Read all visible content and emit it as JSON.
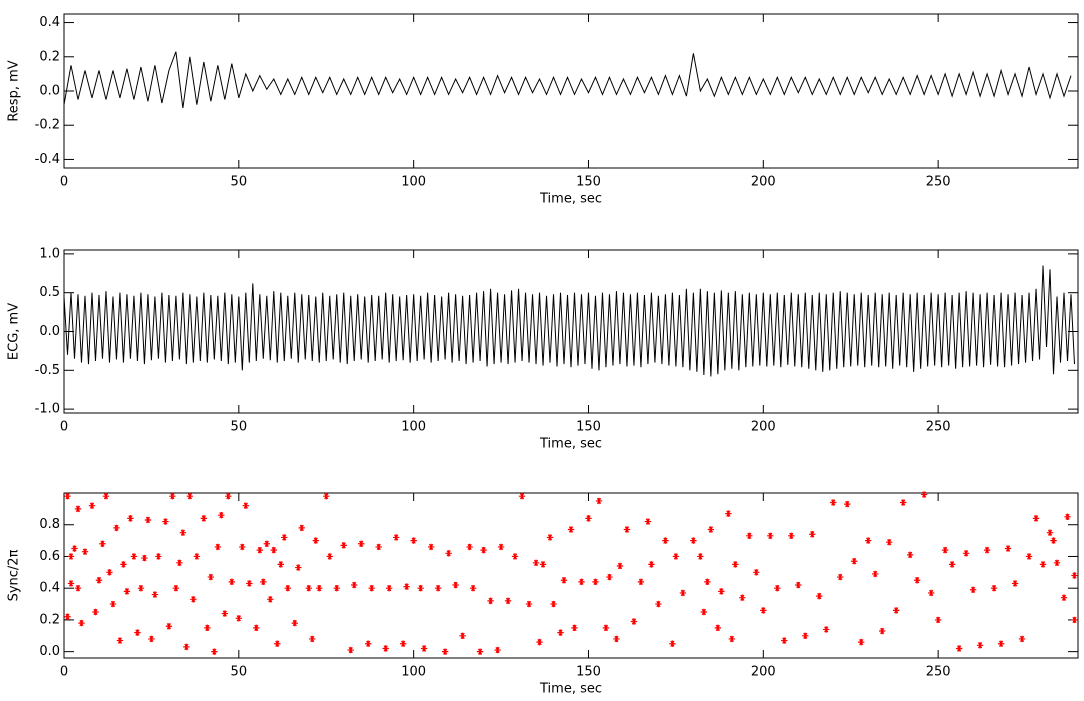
{
  "chart_data": [
    {
      "type": "line",
      "ylabel": "Resp, mV",
      "xlabel": "Time, sec",
      "color": "#000000",
      "xlim": [
        0,
        290
      ],
      "xticks": [
        0,
        50,
        100,
        150,
        200,
        250
      ],
      "ylim": [
        -0.45,
        0.45
      ],
      "yticks": [
        -0.4,
        -0.2,
        {
          "value": 0,
          "label": "0.0"
        },
        0.2,
        0.4
      ],
      "x": [
        0,
        2,
        4,
        6,
        8,
        10,
        12,
        14,
        16,
        18,
        20,
        22,
        24,
        26,
        28,
        30,
        32,
        34,
        36,
        38,
        40,
        42,
        44,
        46,
        48,
        50,
        52,
        54,
        56,
        58,
        60,
        62,
        64,
        66,
        68,
        70,
        72,
        74,
        76,
        78,
        80,
        82,
        84,
        86,
        88,
        90,
        92,
        94,
        96,
        98,
        100,
        102,
        104,
        106,
        108,
        110,
        112,
        114,
        116,
        118,
        120,
        122,
        124,
        126,
        128,
        130,
        132,
        134,
        136,
        138,
        140,
        142,
        144,
        146,
        148,
        150,
        152,
        154,
        156,
        158,
        160,
        162,
        164,
        166,
        168,
        170,
        172,
        174,
        176,
        178,
        180,
        182,
        184,
        186,
        188,
        190,
        192,
        194,
        196,
        198,
        200,
        202,
        204,
        206,
        208,
        210,
        212,
        214,
        216,
        218,
        220,
        222,
        224,
        226,
        228,
        230,
        232,
        234,
        236,
        238,
        240,
        242,
        244,
        246,
        248,
        250,
        252,
        254,
        256,
        258,
        260,
        262,
        264,
        266,
        268,
        270,
        272,
        274,
        276,
        278,
        280,
        282,
        284,
        286,
        288
      ],
      "values": [
        -0.08,
        0.15,
        -0.05,
        0.12,
        -0.04,
        0.12,
        -0.05,
        0.12,
        -0.04,
        0.13,
        -0.05,
        0.14,
        -0.06,
        0.15,
        -0.07,
        0.12,
        0.23,
        -0.1,
        0.2,
        -0.08,
        0.17,
        -0.06,
        0.15,
        -0.05,
        0.16,
        -0.04,
        0.1,
        0.0,
        0.09,
        0.01,
        0.07,
        -0.02,
        0.07,
        -0.02,
        0.08,
        -0.02,
        0.08,
        -0.01,
        0.08,
        -0.02,
        0.07,
        -0.02,
        0.08,
        -0.02,
        0.08,
        -0.02,
        0.08,
        -0.01,
        0.07,
        -0.02,
        0.08,
        -0.02,
        0.08,
        -0.02,
        0.08,
        -0.02,
        0.07,
        -0.01,
        0.08,
        -0.02,
        0.08,
        -0.02,
        0.09,
        -0.01,
        0.08,
        -0.02,
        0.08,
        -0.01,
        0.07,
        -0.02,
        0.08,
        -0.02,
        0.08,
        -0.02,
        0.07,
        -0.01,
        0.08,
        -0.02,
        0.08,
        -0.02,
        0.07,
        -0.02,
        0.08,
        -0.01,
        0.08,
        -0.02,
        0.09,
        -0.02,
        0.09,
        -0.03,
        0.22,
        0.0,
        0.07,
        -0.03,
        0.08,
        -0.02,
        0.08,
        -0.02,
        0.08,
        -0.02,
        0.07,
        -0.02,
        0.08,
        -0.02,
        0.08,
        -0.01,
        0.08,
        -0.02,
        0.07,
        -0.02,
        0.08,
        -0.02,
        0.08,
        -0.02,
        0.08,
        -0.01,
        0.08,
        -0.02,
        0.07,
        -0.02,
        0.08,
        -0.02,
        0.09,
        -0.02,
        0.09,
        -0.02,
        0.1,
        -0.03,
        0.1,
        -0.02,
        0.11,
        -0.03,
        0.1,
        -0.03,
        0.12,
        -0.02,
        0.1,
        -0.03,
        0.14,
        -0.02,
        0.1,
        -0.04,
        0.1,
        -0.03,
        0.09
      ]
    },
    {
      "type": "line",
      "ylabel": "ECG, mV",
      "xlabel": "Time, sec",
      "color": "#000000",
      "xlim": [
        0,
        290
      ],
      "xticks": [
        0,
        50,
        100,
        150,
        200,
        250
      ],
      "ylim": [
        -1.05,
        1.05
      ],
      "yticks": [
        {
          "value": -1,
          "label": "-1.0"
        },
        -0.5,
        {
          "value": 0,
          "label": "0.0"
        },
        0.5,
        {
          "value": 1,
          "label": "1.0"
        }
      ],
      "x": [
        0,
        1,
        2,
        3,
        4,
        5,
        6,
        7,
        8,
        9,
        10,
        11,
        12,
        13,
        14,
        15,
        16,
        17,
        18,
        19,
        20,
        21,
        22,
        23,
        24,
        25,
        26,
        27,
        28,
        29,
        30,
        31,
        32,
        33,
        34,
        35,
        36,
        37,
        38,
        39,
        40,
        41,
        42,
        43,
        44,
        45,
        46,
        47,
        48,
        49,
        50,
        51,
        52,
        53,
        54,
        55,
        56,
        57,
        58,
        59,
        60,
        61,
        62,
        63,
        64,
        65,
        66,
        67,
        68,
        69,
        70,
        71,
        72,
        73,
        74,
        75,
        76,
        77,
        78,
        79,
        80,
        81,
        82,
        83,
        84,
        85,
        86,
        87,
        88,
        89,
        90,
        91,
        92,
        93,
        94,
        95,
        96,
        97,
        98,
        99,
        100,
        101,
        102,
        103,
        104,
        105,
        106,
        107,
        108,
        109,
        110,
        111,
        112,
        113,
        114,
        115,
        116,
        117,
        118,
        119,
        120,
        121,
        122,
        123,
        124,
        125,
        126,
        127,
        128,
        129,
        130,
        131,
        132,
        133,
        134,
        135,
        136,
        137,
        138,
        139,
        140,
        141,
        142,
        143,
        144,
        145,
        146,
        147,
        148,
        149,
        150,
        151,
        152,
        153,
        154,
        155,
        156,
        157,
        158,
        159,
        160,
        161,
        162,
        163,
        164,
        165,
        166,
        167,
        168,
        169,
        170,
        171,
        172,
        173,
        174,
        175,
        176,
        177,
        178,
        179,
        180,
        181,
        182,
        183,
        184,
        185,
        186,
        187,
        188,
        189,
        190,
        191,
        192,
        193,
        194,
        195,
        196,
        197,
        198,
        199,
        200,
        201,
        202,
        203,
        204,
        205,
        206,
        207,
        208,
        209,
        210,
        211,
        212,
        213,
        214,
        215,
        216,
        217,
        218,
        219,
        220,
        221,
        222,
        223,
        224,
        225,
        226,
        227,
        228,
        229,
        230,
        231,
        232,
        233,
        234,
        235,
        236,
        237,
        238,
        239,
        240,
        241,
        242,
        243,
        244,
        245,
        246,
        247,
        248,
        249,
        250,
        251,
        252,
        253,
        254,
        255,
        256,
        257,
        258,
        259,
        260,
        261,
        262,
        263,
        264,
        265,
        266,
        267,
        268,
        269,
        270,
        271,
        272,
        273,
        274,
        275,
        276,
        277,
        278,
        279,
        280,
        281,
        282,
        283,
        284,
        285,
        286,
        287,
        288,
        289
      ],
      "values": [
        0.45,
        -0.3,
        0.5,
        -0.35,
        0.48,
        -0.4,
        0.46,
        -0.42,
        0.5,
        -0.38,
        0.47,
        -0.35,
        0.52,
        -0.4,
        0.45,
        -0.36,
        0.5,
        -0.4,
        0.48,
        -0.35,
        0.46,
        -0.38,
        0.5,
        -0.42,
        0.48,
        -0.37,
        0.45,
        -0.35,
        0.5,
        -0.4,
        0.47,
        -0.38,
        0.46,
        -0.36,
        0.5,
        -0.42,
        0.48,
        -0.4,
        0.45,
        -0.38,
        0.5,
        -0.4,
        0.47,
        -0.36,
        0.46,
        -0.38,
        0.5,
        -0.42,
        0.48,
        -0.4,
        0.45,
        -0.5,
        0.5,
        -0.4,
        0.62,
        -0.38,
        0.48,
        -0.35,
        0.46,
        -0.37,
        0.52,
        -0.4,
        0.5,
        -0.38,
        0.46,
        -0.35,
        0.5,
        -0.4,
        0.48,
        -0.36,
        0.47,
        -0.38,
        0.45,
        -0.4,
        0.5,
        -0.38,
        0.46,
        -0.36,
        0.48,
        -0.4,
        0.5,
        -0.42,
        0.46,
        -0.38,
        0.48,
        -0.36,
        0.45,
        -0.4,
        0.47,
        -0.38,
        0.46,
        -0.36,
        0.5,
        -0.4,
        0.48,
        -0.38,
        0.45,
        -0.37,
        0.47,
        -0.4,
        0.48,
        -0.38,
        0.46,
        -0.36,
        0.5,
        -0.4,
        0.47,
        -0.38,
        0.45,
        -0.36,
        0.5,
        -0.4,
        0.48,
        -0.38,
        0.46,
        -0.42,
        0.47,
        -0.4,
        0.5,
        -0.38,
        0.52,
        -0.45,
        0.55,
        -0.42,
        0.5,
        -0.4,
        0.48,
        -0.42,
        0.53,
        -0.4,
        0.55,
        -0.38,
        0.5,
        -0.4,
        0.48,
        -0.42,
        0.5,
        -0.44,
        0.46,
        -0.4,
        0.48,
        -0.45,
        0.5,
        -0.42,
        0.47,
        -0.46,
        0.5,
        -0.44,
        0.48,
        -0.42,
        0.5,
        -0.48,
        0.46,
        -0.5,
        0.5,
        -0.46,
        0.48,
        -0.44,
        0.52,
        -0.42,
        0.5,
        -0.45,
        0.48,
        -0.44,
        0.5,
        -0.46,
        0.47,
        -0.42,
        0.5,
        -0.4,
        0.46,
        -0.42,
        0.48,
        -0.44,
        0.5,
        -0.45,
        0.47,
        -0.46,
        0.55,
        -0.5,
        0.5,
        -0.52,
        0.55,
        -0.56,
        0.52,
        -0.58,
        0.5,
        -0.55,
        0.53,
        -0.5,
        0.5,
        -0.48,
        0.52,
        -0.5,
        0.48,
        -0.46,
        0.5,
        -0.45,
        0.48,
        -0.44,
        0.5,
        -0.45,
        0.48,
        -0.44,
        0.5,
        -0.46,
        0.47,
        -0.43,
        0.5,
        -0.45,
        0.48,
        -0.46,
        0.5,
        -0.48,
        0.47,
        -0.5,
        0.5,
        -0.52,
        0.48,
        -0.5,
        0.5,
        -0.48,
        0.52,
        -0.46,
        0.5,
        -0.45,
        0.48,
        -0.44,
        0.5,
        -0.46,
        0.47,
        -0.44,
        0.5,
        -0.46,
        0.48,
        -0.45,
        0.5,
        -0.48,
        0.47,
        -0.44,
        0.5,
        -0.46,
        0.48,
        -0.52,
        0.5,
        -0.48,
        0.47,
        -0.45,
        0.5,
        -0.44,
        0.48,
        -0.46,
        0.5,
        -0.44,
        0.47,
        -0.48,
        0.5,
        -0.46,
        0.52,
        -0.45,
        0.5,
        -0.44,
        0.48,
        -0.46,
        0.5,
        -0.43,
        0.47,
        -0.45,
        0.5,
        -0.46,
        0.48,
        -0.44,
        0.5,
        -0.42,
        0.47,
        -0.4,
        0.5,
        -0.38,
        0.55,
        -0.36,
        0.85,
        -0.2,
        0.8,
        -0.55,
        0.45,
        -0.4,
        0.5,
        -0.38,
        0.48,
        -0.42
      ]
    },
    {
      "type": "scatter",
      "ylabel": "Sync/2π",
      "xlabel": "Time, sec",
      "color": "#ff0000",
      "xlim": [
        0,
        290
      ],
      "xticks": [
        0,
        50,
        100,
        150,
        200,
        250
      ],
      "ylim": [
        -0.04,
        1.0
      ],
      "yticks": [
        {
          "value": 0,
          "label": "0.0"
        },
        0.2,
        0.4,
        0.6,
        0.8
      ],
      "x": [
        1,
        1,
        2,
        2,
        3,
        4,
        4,
        5,
        6,
        8,
        9,
        10,
        11,
        12,
        13,
        14,
        15,
        16,
        17,
        18,
        19,
        20,
        21,
        22,
        23,
        24,
        25,
        26,
        27,
        29,
        30,
        31,
        32,
        33,
        34,
        35,
        36,
        37,
        38,
        40,
        41,
        42,
        43,
        44,
        45,
        46,
        47,
        48,
        50,
        51,
        52,
        53,
        55,
        56,
        57,
        58,
        59,
        60,
        61,
        62,
        63,
        64,
        66,
        67,
        68,
        70,
        71,
        72,
        73,
        75,
        76,
        78,
        80,
        82,
        83,
        85,
        87,
        88,
        90,
        92,
        93,
        95,
        97,
        98,
        100,
        102,
        103,
        105,
        107,
        109,
        110,
        112,
        114,
        116,
        117,
        119,
        120,
        122,
        124,
        125,
        127,
        129,
        131,
        133,
        135,
        136,
        137,
        139,
        140,
        142,
        143,
        145,
        146,
        148,
        150,
        152,
        153,
        155,
        156,
        158,
        159,
        161,
        163,
        165,
        167,
        168,
        170,
        172,
        174,
        175,
        177,
        180,
        182,
        183,
        184,
        185,
        187,
        188,
        190,
        191,
        192,
        194,
        196,
        198,
        200,
        202,
        204,
        206,
        208,
        210,
        212,
        214,
        216,
        218,
        220,
        222,
        224,
        226,
        228,
        230,
        232,
        234,
        236,
        238,
        240,
        242,
        244,
        246,
        248,
        250,
        252,
        254,
        256,
        258,
        260,
        262,
        264,
        266,
        268,
        270,
        272,
        274,
        276,
        278,
        280,
        282,
        283,
        284,
        286,
        287,
        289,
        289
      ],
      "values": [
        0.98,
        0.22,
        0.6,
        0.43,
        0.65,
        0.9,
        0.4,
        0.18,
        0.63,
        0.92,
        0.25,
        0.45,
        0.68,
        0.98,
        0.5,
        0.3,
        0.78,
        0.07,
        0.55,
        0.38,
        0.84,
        0.6,
        0.12,
        0.4,
        0.59,
        0.83,
        0.08,
        0.36,
        0.6,
        0.82,
        0.16,
        0.98,
        0.4,
        0.56,
        0.75,
        0.03,
        0.98,
        0.33,
        0.6,
        0.84,
        0.15,
        0.47,
        0.0,
        0.66,
        0.86,
        0.24,
        0.98,
        0.44,
        0.21,
        0.66,
        0.92,
        0.43,
        0.15,
        0.64,
        0.44,
        0.68,
        0.33,
        0.64,
        0.05,
        0.55,
        0.72,
        0.4,
        0.18,
        0.53,
        0.78,
        0.4,
        0.08,
        0.7,
        0.4,
        0.98,
        0.6,
        0.4,
        0.67,
        0.01,
        0.42,
        0.68,
        0.05,
        0.4,
        0.66,
        0.02,
        0.4,
        0.72,
        0.05,
        0.41,
        0.7,
        0.4,
        0.02,
        0.66,
        0.4,
        0.0,
        0.62,
        0.42,
        0.1,
        0.66,
        0.4,
        0.0,
        0.64,
        0.32,
        0.01,
        0.66,
        0.32,
        0.6,
        0.98,
        0.3,
        0.56,
        0.06,
        0.55,
        0.72,
        0.3,
        0.12,
        0.45,
        0.77,
        0.15,
        0.44,
        0.84,
        0.44,
        0.95,
        0.15,
        0.47,
        0.08,
        0.54,
        0.77,
        0.19,
        0.44,
        0.82,
        0.55,
        0.3,
        0.7,
        0.05,
        0.6,
        0.37,
        0.7,
        0.6,
        0.25,
        0.44,
        0.77,
        0.15,
        0.38,
        0.87,
        0.08,
        0.55,
        0.34,
        0.73,
        0.5,
        0.26,
        0.73,
        0.4,
        0.07,
        0.73,
        0.42,
        0.1,
        0.74,
        0.35,
        0.14,
        0.94,
        0.47,
        0.93,
        0.57,
        0.06,
        0.7,
        0.49,
        0.13,
        0.69,
        0.26,
        0.94,
        0.61,
        0.45,
        0.99,
        0.37,
        0.2,
        0.64,
        0.55,
        0.02,
        0.62,
        0.39,
        0.04,
        0.64,
        0.4,
        0.05,
        0.65,
        0.43,
        0.08,
        0.6,
        0.84,
        0.55,
        0.75,
        0.7,
        0.56,
        0.34,
        0.85,
        0.48,
        0.2
      ]
    }
  ]
}
